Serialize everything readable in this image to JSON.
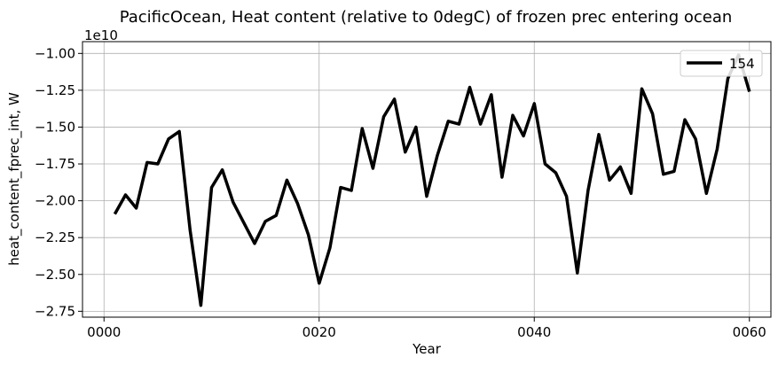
{
  "chart_data": {
    "type": "line",
    "title": "PacificOcean, Heat content (relative to 0degC) of frozen prec entering ocean",
    "xlabel": "Year",
    "ylabel": "heat_content_fprec_int, W",
    "y_offset_label": "1e10",
    "y_scale": 10000000000.0,
    "xlim": [
      -2,
      62
    ],
    "ylim": [
      -2.79,
      -0.92
    ],
    "x_ticks": [
      0,
      20,
      40,
      60
    ],
    "x_tick_labels": [
      "0000",
      "0020",
      "0040",
      "0060"
    ],
    "y_ticks": [
      -2.75,
      -2.5,
      -2.25,
      -2.0,
      -1.75,
      -1.5,
      -1.25,
      -1.0
    ],
    "y_tick_labels": [
      "−2.75",
      "−2.50",
      "−2.25",
      "−2.00",
      "−1.75",
      "−1.50",
      "−1.25",
      "−1.00"
    ],
    "grid": true,
    "legend_position": "top-right",
    "series": [
      {
        "name": "154",
        "color": "#000000",
        "x": [
          1,
          2,
          3,
          4,
          5,
          6,
          7,
          8,
          9,
          10,
          11,
          12,
          13,
          14,
          15,
          16,
          17,
          18,
          19,
          20,
          21,
          22,
          23,
          24,
          25,
          26,
          27,
          28,
          29,
          30,
          31,
          32,
          33,
          34,
          35,
          36,
          37,
          38,
          39,
          40,
          41,
          42,
          43,
          44,
          45,
          46,
          47,
          48,
          49,
          50,
          51,
          52,
          53,
          54,
          55,
          56,
          57,
          58,
          59,
          60
        ],
        "values": [
          -2.09,
          -1.96,
          -2.05,
          -1.74,
          -1.75,
          -1.58,
          -1.53,
          -2.2,
          -2.71,
          -1.91,
          -1.79,
          -2.01,
          -2.15,
          -2.29,
          -2.14,
          -2.1,
          -1.86,
          -2.02,
          -2.23,
          -2.56,
          -2.32,
          -1.91,
          -1.93,
          -1.51,
          -1.78,
          -1.43,
          -1.31,
          -1.67,
          -1.5,
          -1.97,
          -1.69,
          -1.46,
          -1.48,
          -1.23,
          -1.48,
          -1.28,
          -1.84,
          -1.42,
          -1.56,
          -1.34,
          -1.75,
          -1.81,
          -1.97,
          -2.49,
          -1.93,
          -1.55,
          -1.86,
          -1.77,
          -1.95,
          -1.24,
          -1.41,
          -1.82,
          -1.8,
          -1.45,
          -1.58,
          -1.95,
          -1.65,
          -1.17,
          -1.01,
          -1.26
        ]
      }
    ]
  }
}
